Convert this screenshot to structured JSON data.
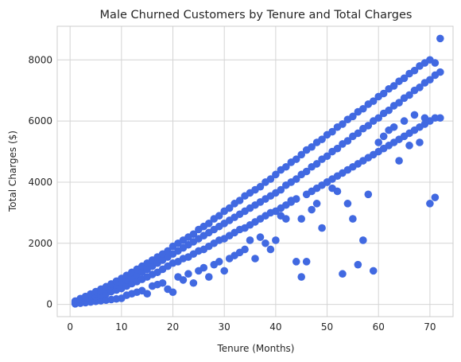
{
  "chart_data": {
    "type": "scatter",
    "title": "Male Churned Customers by Tenure and Total Charges",
    "xlabel": "Tenure (Months)",
    "ylabel": "Total Charges ($)",
    "xlim": [
      -2.5,
      74.5
    ],
    "ylim": [
      -400,
      9100
    ],
    "xticks": [
      0,
      10,
      20,
      30,
      40,
      50,
      60,
      70
    ],
    "yticks": [
      0,
      2000,
      4000,
      6000,
      8000
    ],
    "grid": true,
    "marker_color": "#4169e1",
    "series": [
      {
        "points": [
          [
            1,
            20
          ],
          [
            1,
            45
          ],
          [
            1,
            70
          ],
          [
            1,
            95
          ],
          [
            1,
            110
          ],
          [
            2,
            40
          ],
          [
            2,
            90
          ],
          [
            2,
            140
          ],
          [
            2,
            160
          ],
          [
            2,
            190
          ],
          [
            3,
            60
          ],
          [
            3,
            150
          ],
          [
            3,
            220
          ],
          [
            3,
            260
          ],
          [
            4,
            80
          ],
          [
            4,
            200
          ],
          [
            4,
            280
          ],
          [
            4,
            340
          ],
          [
            5,
            100
          ],
          [
            5,
            260
          ],
          [
            5,
            350
          ],
          [
            5,
            420
          ],
          [
            6,
            120
          ],
          [
            6,
            300
          ],
          [
            6,
            430
          ],
          [
            6,
            500
          ],
          [
            7,
            140
          ],
          [
            7,
            350
          ],
          [
            7,
            500
          ],
          [
            7,
            580
          ],
          [
            8,
            160
          ],
          [
            8,
            420
          ],
          [
            8,
            580
          ],
          [
            8,
            670
          ],
          [
            9,
            180
          ],
          [
            9,
            470
          ],
          [
            9,
            650
          ],
          [
            9,
            760
          ],
          [
            10,
            200
          ],
          [
            10,
            520
          ],
          [
            10,
            720
          ],
          [
            10,
            850
          ],
          [
            11,
            300
          ],
          [
            11,
            600
          ],
          [
            11,
            800
          ],
          [
            11,
            950
          ],
          [
            12,
            350
          ],
          [
            12,
            680
          ],
          [
            12,
            880
          ],
          [
            12,
            1050
          ],
          [
            13,
            400
          ],
          [
            13,
            750
          ],
          [
            13,
            950
          ],
          [
            13,
            1150
          ],
          [
            14,
            450
          ],
          [
            14,
            820
          ],
          [
            14,
            1050
          ],
          [
            14,
            1250
          ],
          [
            15,
            350
          ],
          [
            15,
            900
          ],
          [
            15,
            1150
          ],
          [
            15,
            1350
          ],
          [
            16,
            600
          ],
          [
            16,
            980
          ],
          [
            16,
            1250
          ],
          [
            16,
            1450
          ],
          [
            17,
            650
          ],
          [
            17,
            1050
          ],
          [
            17,
            1350
          ],
          [
            17,
            1550
          ],
          [
            18,
            700
          ],
          [
            18,
            1150
          ],
          [
            18,
            1450
          ],
          [
            18,
            1650
          ],
          [
            19,
            500
          ],
          [
            19,
            1250
          ],
          [
            19,
            1550
          ],
          [
            19,
            1750
          ],
          [
            20,
            400
          ],
          [
            20,
            1350
          ],
          [
            20,
            1650
          ],
          [
            20,
            1900
          ],
          [
            21,
            900
          ],
          [
            21,
            1400
          ],
          [
            21,
            1750
          ],
          [
            21,
            2000
          ],
          [
            22,
            800
          ],
          [
            22,
            1500
          ],
          [
            22,
            1850
          ],
          [
            22,
            2100
          ],
          [
            23,
            1000
          ],
          [
            23,
            1550
          ],
          [
            23,
            1950
          ],
          [
            23,
            2200
          ],
          [
            24,
            700
          ],
          [
            24,
            1650
          ],
          [
            24,
            2050
          ],
          [
            24,
            2300
          ],
          [
            25,
            1100
          ],
          [
            25,
            1750
          ],
          [
            25,
            2150
          ],
          [
            25,
            2450
          ],
          [
            26,
            1200
          ],
          [
            26,
            1800
          ],
          [
            26,
            2250
          ],
          [
            26,
            2550
          ],
          [
            27,
            900
          ],
          [
            27,
            1900
          ],
          [
            27,
            2350
          ],
          [
            27,
            2650
          ],
          [
            28,
            1300
          ],
          [
            28,
            2000
          ],
          [
            28,
            2450
          ],
          [
            28,
            2800
          ],
          [
            29,
            1400
          ],
          [
            29,
            2100
          ],
          [
            29,
            2550
          ],
          [
            29,
            2900
          ],
          [
            30,
            1100
          ],
          [
            30,
            2150
          ],
          [
            30,
            2650
          ],
          [
            30,
            3050
          ],
          [
            31,
            1500
          ],
          [
            31,
            2250
          ],
          [
            31,
            2750
          ],
          [
            31,
            3150
          ],
          [
            32,
            1600
          ],
          [
            32,
            2350
          ],
          [
            32,
            2850
          ],
          [
            32,
            3300
          ],
          [
            33,
            1700
          ],
          [
            33,
            2450
          ],
          [
            33,
            2950
          ],
          [
            33,
            3400
          ],
          [
            34,
            1800
          ],
          [
            34,
            2500
          ],
          [
            34,
            3050
          ],
          [
            34,
            3550
          ],
          [
            35,
            2100
          ],
          [
            35,
            2600
          ],
          [
            35,
            3150
          ],
          [
            35,
            3650
          ],
          [
            36,
            1500
          ],
          [
            36,
            2700
          ],
          [
            36,
            3250
          ],
          [
            36,
            3750
          ],
          [
            37,
            2200
          ],
          [
            37,
            2800
          ],
          [
            37,
            3350
          ],
          [
            37,
            3850
          ],
          [
            38,
            2000
          ],
          [
            38,
            2900
          ],
          [
            38,
            3450
          ],
          [
            38,
            4000
          ],
          [
            39,
            1800
          ],
          [
            39,
            3000
          ],
          [
            39,
            3550
          ],
          [
            39,
            4100
          ],
          [
            40,
            2100
          ],
          [
            40,
            3050
          ],
          [
            40,
            3650
          ],
          [
            40,
            4250
          ],
          [
            41,
            2900
          ],
          [
            41,
            3150
          ],
          [
            41,
            3750
          ],
          [
            41,
            4400
          ],
          [
            42,
            2800
          ],
          [
            42,
            3250
          ],
          [
            42,
            3900
          ],
          [
            42,
            4500
          ],
          [
            43,
            3400
          ],
          [
            43,
            3350
          ],
          [
            43,
            4000
          ],
          [
            43,
            4650
          ],
          [
            44,
            1400
          ],
          [
            44,
            3450
          ],
          [
            44,
            4100
          ],
          [
            44,
            4750
          ],
          [
            45,
            900
          ],
          [
            45,
            2800
          ],
          [
            45,
            4250
          ],
          [
            45,
            4900
          ],
          [
            46,
            1400
          ],
          [
            46,
            3600
          ],
          [
            46,
            4350
          ],
          [
            46,
            5050
          ],
          [
            47,
            3100
          ],
          [
            47,
            3700
          ],
          [
            47,
            4500
          ],
          [
            47,
            5150
          ],
          [
            48,
            3300
          ],
          [
            48,
            3800
          ],
          [
            48,
            4600
          ],
          [
            48,
            5300
          ],
          [
            49,
            2500
          ],
          [
            49,
            3900
          ],
          [
            49,
            4750
          ],
          [
            49,
            5400
          ],
          [
            50,
            4000
          ],
          [
            50,
            4000
          ],
          [
            50,
            4850
          ],
          [
            50,
            5550
          ],
          [
            51,
            3800
          ],
          [
            51,
            4100
          ],
          [
            51,
            5000
          ],
          [
            51,
            5650
          ],
          [
            52,
            3700
          ],
          [
            52,
            4200
          ],
          [
            52,
            5100
          ],
          [
            52,
            5800
          ],
          [
            53,
            1000
          ],
          [
            53,
            4300
          ],
          [
            53,
            5250
          ],
          [
            53,
            5900
          ],
          [
            54,
            3300
          ],
          [
            54,
            4400
          ],
          [
            54,
            5350
          ],
          [
            54,
            6050
          ],
          [
            55,
            2800
          ],
          [
            55,
            4500
          ],
          [
            55,
            5500
          ],
          [
            55,
            6150
          ],
          [
            56,
            1300
          ],
          [
            56,
            4600
          ],
          [
            56,
            5600
          ],
          [
            56,
            6300
          ],
          [
            57,
            2100
          ],
          [
            57,
            4700
          ],
          [
            57,
            5750
          ],
          [
            57,
            6400
          ],
          [
            58,
            3600
          ],
          [
            58,
            4800
          ],
          [
            58,
            5850
          ],
          [
            58,
            6550
          ],
          [
            59,
            1100
          ],
          [
            59,
            4900
          ],
          [
            59,
            6000
          ],
          [
            59,
            6650
          ],
          [
            60,
            5300
          ],
          [
            60,
            5000
          ],
          [
            60,
            6100
          ],
          [
            60,
            6800
          ],
          [
            61,
            5500
          ],
          [
            61,
            5100
          ],
          [
            61,
            6250
          ],
          [
            61,
            6900
          ],
          [
            62,
            5700
          ],
          [
            62,
            5200
          ],
          [
            62,
            6350
          ],
          [
            62,
            7050
          ],
          [
            63,
            5800
          ],
          [
            63,
            5300
          ],
          [
            63,
            6500
          ],
          [
            63,
            7150
          ],
          [
            64,
            4700
          ],
          [
            64,
            5400
          ],
          [
            64,
            6600
          ],
          [
            64,
            7300
          ],
          [
            65,
            6000
          ],
          [
            65,
            5500
          ],
          [
            65,
            6750
          ],
          [
            65,
            7400
          ],
          [
            66,
            5200
          ],
          [
            66,
            5600
          ],
          [
            66,
            6850
          ],
          [
            66,
            7550
          ],
          [
            67,
            6200
          ],
          [
            67,
            5700
          ],
          [
            67,
            7000
          ],
          [
            67,
            7650
          ],
          [
            68,
            5300
          ],
          [
            68,
            5800
          ],
          [
            68,
            7100
          ],
          [
            68,
            7800
          ],
          [
            69,
            6100
          ],
          [
            69,
            5900
          ],
          [
            69,
            7250
          ],
          [
            69,
            7900
          ],
          [
            70,
            3300
          ],
          [
            70,
            6000
          ],
          [
            70,
            7350
          ],
          [
            70,
            8000
          ],
          [
            71,
            3500
          ],
          [
            71,
            6100
          ],
          [
            71,
            7500
          ],
          [
            71,
            7900
          ],
          [
            72,
            6100
          ],
          [
            72,
            7600
          ],
          [
            72,
            8700
          ]
        ]
      }
    ]
  }
}
